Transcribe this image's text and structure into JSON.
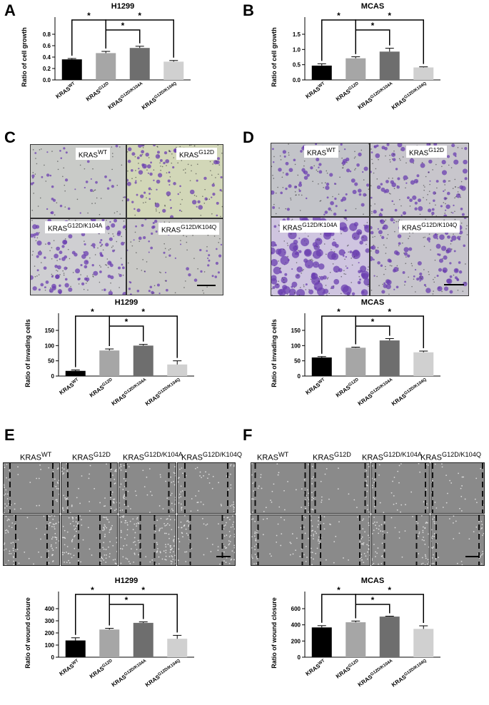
{
  "panels": {
    "A": "A",
    "B": "B",
    "C": "C",
    "D": "D",
    "E": "E",
    "F": "F"
  },
  "colors": {
    "wt": "#000000",
    "g12d": "#a6a6a6",
    "k104a": "#6e6e6e",
    "k104q": "#d0d0d0",
    "stain": "#6b3fb0"
  },
  "groups": [
    {
      "base": "KRAS",
      "sup": "WT"
    },
    {
      "base": "KRAS",
      "sup": "G12D"
    },
    {
      "base": "KRAS",
      "sup": "G12D/K104A"
    },
    {
      "base": "KRAS",
      "sup": "G12D/K104Q"
    }
  ],
  "star": "*",
  "chart_data": [
    {
      "id": "A",
      "type": "bar",
      "title": "H1299",
      "ylabel": "Ratio of cell growth",
      "ylim": [
        0,
        0.8
      ],
      "yticks": [
        "0.0",
        "0.2",
        "0.4",
        "0.6",
        "0.8"
      ],
      "values": [
        0.36,
        0.47,
        0.56,
        0.32
      ],
      "errors": [
        0.015,
        0.03,
        0.03,
        0.02
      ]
    },
    {
      "id": "B",
      "type": "bar",
      "title": "MCAS",
      "ylabel": "Ratio of cell growth",
      "ylim": [
        0,
        1.5
      ],
      "yticks": [
        "0.0",
        "0.5",
        "1.0",
        "1.5"
      ],
      "values": [
        0.47,
        0.71,
        0.93,
        0.41
      ],
      "errors": [
        0.06,
        0.05,
        0.11,
        0.02
      ]
    },
    {
      "id": "C",
      "type": "bar",
      "title": "H1299",
      "ylabel": "Ratio of invading cells",
      "ylim": [
        0,
        150
      ],
      "yticks": [
        "0",
        "50",
        "100",
        "150"
      ],
      "values": [
        17,
        84,
        100,
        38
      ],
      "errors": [
        3,
        5,
        4,
        12
      ]
    },
    {
      "id": "D",
      "type": "bar",
      "title": "MCAS",
      "ylabel": "Ratio of invading cells",
      "ylim": [
        0,
        150
      ],
      "yticks": [
        "0",
        "50",
        "100",
        "150"
      ],
      "values": [
        61,
        93,
        117,
        78
      ],
      "errors": [
        3,
        2,
        6,
        4
      ]
    },
    {
      "id": "E",
      "type": "bar",
      "title": "H1299",
      "ylabel": "Ratio of wound closure",
      "ylim": [
        0,
        400
      ],
      "yticks": [
        "0",
        "100",
        "200",
        "300",
        "400"
      ],
      "values": [
        138,
        228,
        283,
        152
      ],
      "errors": [
        22,
        10,
        8,
        28
      ]
    },
    {
      "id": "F",
      "type": "bar",
      "title": "MCAS",
      "ylabel": "Ratio of wound closure",
      "ylim": [
        0,
        600
      ],
      "yticks": [
        "0",
        "200",
        "400",
        "600"
      ],
      "values": [
        368,
        432,
        502,
        350
      ],
      "errors": [
        22,
        15,
        5,
        38
      ]
    }
  ]
}
